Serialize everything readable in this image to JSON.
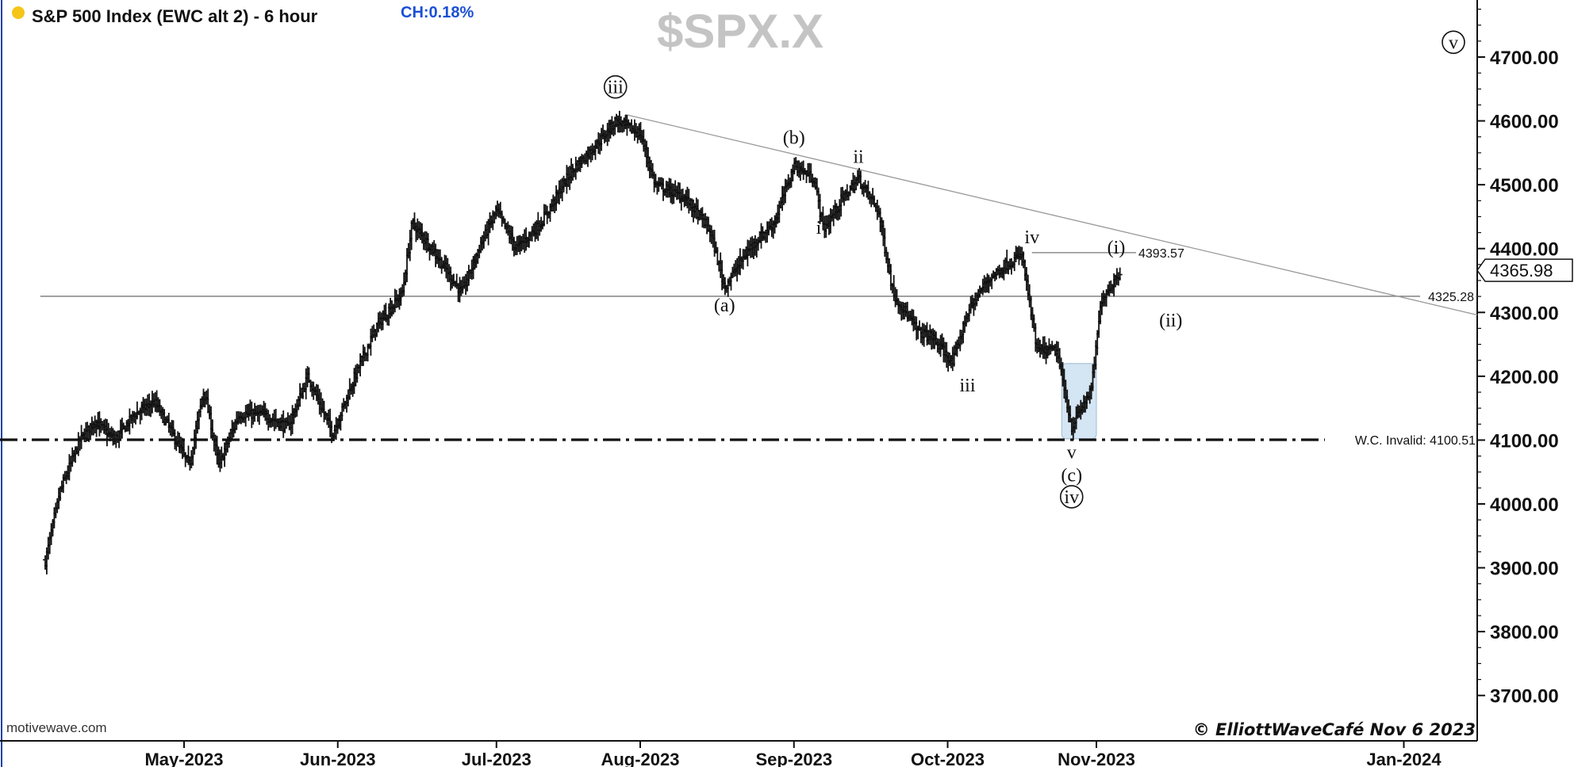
{
  "header": {
    "title": "S&P 500 Index (EWC alt 2) - 6 hour",
    "change": "CH:0.18%",
    "dot_color": "#f5c518",
    "change_color": "#1a4fd6",
    "watermark": "$SPX.X"
  },
  "footer": {
    "source": "motivewave.com",
    "copyright": "© ElliottWaveCafé Nov 6 2023"
  },
  "current_price": "4365.98",
  "chart_data": {
    "type": "ohlc",
    "timeframe": "6 hour",
    "ylim": [
      3680,
      4820
    ],
    "x_date_range": [
      "2023-04-02",
      "2024-01-22"
    ],
    "y_ticks": [
      "3700.00",
      "3800.00",
      "3900.00",
      "4000.00",
      "4100.00",
      "4200.00",
      "4300.00",
      "4400.00",
      "4500.00",
      "4600.00",
      "4700.00"
    ],
    "x_ticks": [
      {
        "label": "May-2023",
        "date": "2023-05-01"
      },
      {
        "label": "Jun-2023",
        "date": "2023-06-01"
      },
      {
        "label": "Jul-2023",
        "date": "2023-07-03"
      },
      {
        "label": "Aug-2023",
        "date": "2023-08-01"
      },
      {
        "label": "Sep-2023",
        "date": "2023-09-01"
      },
      {
        "label": "Oct-2023",
        "date": "2023-10-02"
      },
      {
        "label": "Nov-2023",
        "date": "2023-11-01"
      },
      {
        "label": "Jan-2024",
        "date": "2024-01-02"
      }
    ],
    "price_path": [
      [
        "2023-04-03",
        3910
      ],
      [
        "2023-04-06",
        4020
      ],
      [
        "2023-04-10",
        4100
      ],
      [
        "2023-04-13",
        4130
      ],
      [
        "2023-04-17",
        4100
      ],
      [
        "2023-04-21",
        4140
      ],
      [
        "2023-04-25",
        4160
      ],
      [
        "2023-04-28",
        4120
      ],
      [
        "2023-05-02",
        4060
      ],
      [
        "2023-05-05",
        4180
      ],
      [
        "2023-05-08",
        4060
      ],
      [
        "2023-05-12",
        4140
      ],
      [
        "2023-05-17",
        4140
      ],
      [
        "2023-05-22",
        4120
      ],
      [
        "2023-05-26",
        4200
      ],
      [
        "2023-05-31",
        4110
      ],
      [
        "2023-06-05",
        4210
      ],
      [
        "2023-06-09",
        4280
      ],
      [
        "2023-06-14",
        4330
      ],
      [
        "2023-06-16",
        4440
      ],
      [
        "2023-06-20",
        4400
      ],
      [
        "2023-06-26",
        4330
      ],
      [
        "2023-06-30",
        4410
      ],
      [
        "2023-07-03",
        4460
      ],
      [
        "2023-07-07",
        4400
      ],
      [
        "2023-07-12",
        4440
      ],
      [
        "2023-07-18",
        4520
      ],
      [
        "2023-07-24",
        4570
      ],
      [
        "2023-07-27",
        4600
      ],
      [
        "2023-08-01",
        4580
      ],
      [
        "2023-08-04",
        4500
      ],
      [
        "2023-08-10",
        4480
      ],
      [
        "2023-08-15",
        4430
      ],
      [
        "2023-08-18",
        4340
      ],
      [
        "2023-08-23",
        4400
      ],
      [
        "2023-08-28",
        4440
      ],
      [
        "2023-09-01",
        4530
      ],
      [
        "2023-09-05",
        4510
      ],
      [
        "2023-09-07",
        4430
      ],
      [
        "2023-09-11",
        4480
      ],
      [
        "2023-09-14",
        4510
      ],
      [
        "2023-09-18",
        4460
      ],
      [
        "2023-09-21",
        4330
      ],
      [
        "2023-09-26",
        4270
      ],
      [
        "2023-09-29",
        4260
      ],
      [
        "2023-10-03",
        4220
      ],
      [
        "2023-10-06",
        4300
      ],
      [
        "2023-10-10",
        4350
      ],
      [
        "2023-10-13",
        4370
      ],
      [
        "2023-10-17",
        4390
      ],
      [
        "2023-10-20",
        4240
      ],
      [
        "2023-10-24",
        4240
      ],
      [
        "2023-10-27",
        4120
      ],
      [
        "2023-10-31",
        4180
      ],
      [
        "2023-11-02",
        4320
      ],
      [
        "2023-11-06",
        4366
      ]
    ],
    "annotations": [
      {
        "label": "iii",
        "circled": true,
        "date": "2023-07-27",
        "y": 4652
      },
      {
        "label": "(b)",
        "date": "2023-09-01",
        "y": 4573
      },
      {
        "label": "ii",
        "date": "2023-09-14",
        "y": 4543
      },
      {
        "label": "i",
        "date": "2023-09-06",
        "y": 4432
      },
      {
        "label": "(a)",
        "date": "2023-08-18",
        "y": 4310
      },
      {
        "label": "iv",
        "date": "2023-10-19",
        "y": 4417
      },
      {
        "label": "(i)",
        "date": "2023-11-05",
        "y": 4401
      },
      {
        "label": "(ii)",
        "date": "2023-11-16",
        "y": 4287
      },
      {
        "label": "iii",
        "date": "2023-10-06",
        "y": 4185
      },
      {
        "label": "v",
        "date": "2023-10-27",
        "y": 4080
      },
      {
        "label": "(c)",
        "date": "2023-10-27",
        "y": 4044
      },
      {
        "label": "iv",
        "circled": true,
        "date": "2023-10-27",
        "y": 4010
      },
      {
        "label": "v",
        "circled": true,
        "date": "2024-01-12",
        "y": 4722
      }
    ],
    "levels": [
      {
        "label": "4393.57",
        "value": 4393.57,
        "from": "2023-10-19",
        "to": "2023-11-09",
        "style": "thin"
      },
      {
        "label": "4325.28",
        "value": 4325.28,
        "from": "2023-04-02",
        "to": "2024-01-22",
        "style": "thin"
      },
      {
        "label": "W.C. Invalid: 4100.51",
        "value": 4100.51,
        "from": "2023-04-02",
        "to": "2024-01-22",
        "style": "dash-dot"
      }
    ],
    "trendline": [
      [
        "2023-07-29",
        4610
      ],
      [
        "2024-01-22",
        4296
      ]
    ],
    "highlight_box": {
      "from": "2023-10-25",
      "to": "2023-11-01",
      "y_low": 4102,
      "y_high": 4220,
      "color": "#c9dff0"
    }
  }
}
